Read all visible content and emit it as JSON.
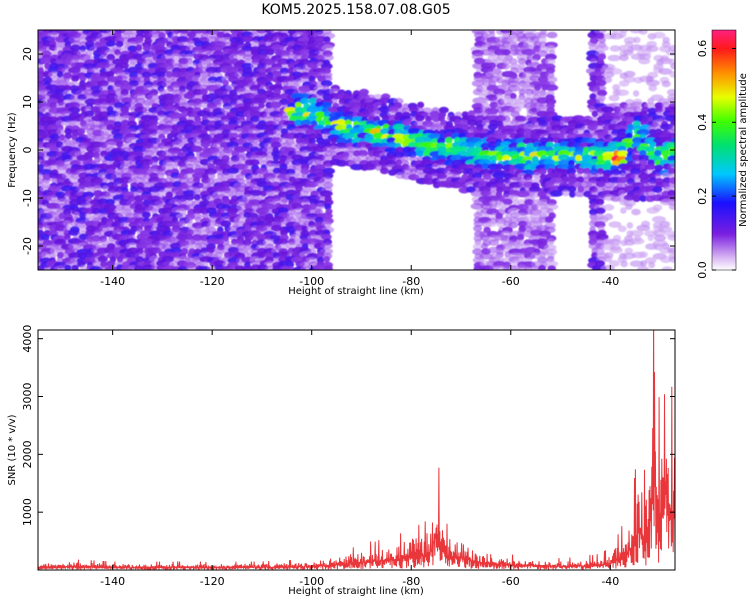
{
  "title": "KOM5.2025.158.07.08.G05",
  "chart_data": [
    {
      "type": "heatmap",
      "xlabel": "Height of straight line (km)",
      "ylabel": "Frequency (Hz)",
      "xlim": [
        -155,
        -27
      ],
      "ylim": [
        -25,
        25
      ],
      "xticks": [
        -140,
        -120,
        -100,
        -80,
        -60,
        -40
      ],
      "yticks": [
        -20,
        -10,
        0,
        10,
        20
      ],
      "colorbar": {
        "label": "Normalized spectral amplitude",
        "range": [
          0.0,
          0.65
        ],
        "ticks": [
          "0.0",
          "0.2",
          "0.4",
          "0.6"
        ],
        "colormap": "rainbow (white-violet-blue-cyan-green-yellow-red-magenta)"
      },
      "strong_features": [
        {
          "height_km": -100,
          "freq_hz": 8,
          "amplitude": 0.25
        },
        {
          "height_km": -95,
          "freq_hz": 5,
          "amplitude": 0.22
        },
        {
          "height_km": -88,
          "freq_hz": 4,
          "amplitude": 0.25
        },
        {
          "height_km": -80,
          "freq_hz": 2,
          "amplitude": 0.3
        },
        {
          "height_km": -76,
          "freq_hz": 1,
          "amplitude": 0.38
        },
        {
          "height_km": -70,
          "freq_hz": 0,
          "amplitude": 0.3
        },
        {
          "height_km": -62,
          "freq_hz": -1,
          "amplitude": 0.25
        },
        {
          "height_km": -40,
          "freq_hz": -1,
          "amplitude": 0.45
        },
        {
          "height_km": -39,
          "freq_hz": -1.5,
          "amplitude": 0.62
        },
        {
          "height_km": -35,
          "freq_hz": 4,
          "amplitude": 0.3
        },
        {
          "height_km": -30,
          "freq_hz": -2,
          "amplitude": 0.3
        },
        {
          "height_km": -28,
          "freq_hz": 0,
          "amplitude": 0.35
        }
      ],
      "grid": false
    },
    {
      "type": "line",
      "xlabel": "Height of straight line (km)",
      "ylabel": "SNR (10 * v/v)",
      "xlim": [
        -155,
        -27
      ],
      "ylim": [
        0,
        4150
      ],
      "xticks": [
        -140,
        -120,
        -100,
        -80,
        -60,
        -40
      ],
      "yticks": [
        1000,
        2000,
        3000,
        4000
      ],
      "series": [
        {
          "color": "#e8363a",
          "x": [
            -155,
            -150,
            -145,
            -140,
            -135,
            -130,
            -125,
            -120,
            -115,
            -110,
            -105,
            -100,
            -95,
            -90,
            -85,
            -82,
            -80,
            -78,
            -76,
            -75,
            -73,
            -70,
            -67,
            -65,
            -60,
            -55,
            -50,
            -45,
            -42,
            -40,
            -38,
            -36,
            -34,
            -33,
            -32,
            -31,
            -30,
            -29,
            -28,
            -27
          ],
          "y": [
            110,
            150,
            140,
            120,
            110,
            115,
            120,
            110,
            115,
            120,
            130,
            170,
            230,
            350,
            430,
            500,
            650,
            600,
            800,
            1750,
            620,
            560,
            360,
            320,
            220,
            180,
            160,
            190,
            230,
            300,
            560,
            900,
            1800,
            1300,
            2500,
            4150,
            1900,
            3500,
            2600,
            2300
          ]
        }
      ],
      "grid": false
    }
  ],
  "colors": {
    "line": "#e8363a",
    "frame": "#000000",
    "background": "#ffffff"
  }
}
